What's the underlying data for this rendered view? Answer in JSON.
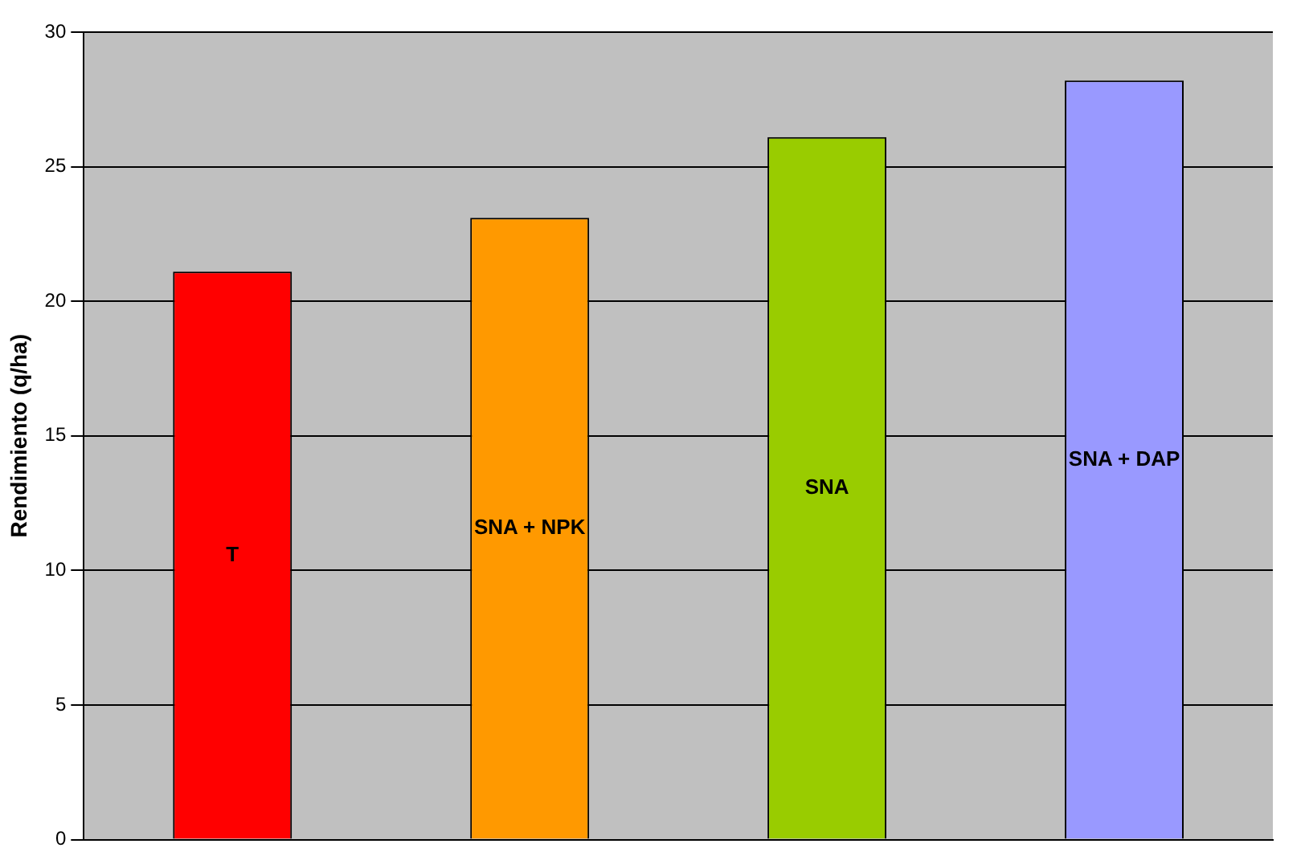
{
  "chart_data": {
    "type": "bar",
    "ylabel": "Rendimiento (q/ha)",
    "categories": [
      "T",
      "SNA + NPK",
      "SNA",
      "SNA + DAP"
    ],
    "values": [
      21.1,
      23.1,
      26.1,
      28.2
    ],
    "colors": [
      "#ff0000",
      "#ff9900",
      "#99cc00",
      "#9999ff"
    ],
    "ylim": [
      0,
      30
    ],
    "yticks": [
      0,
      5,
      10,
      15,
      20,
      25,
      30
    ],
    "grid": "y",
    "legend": false
  }
}
